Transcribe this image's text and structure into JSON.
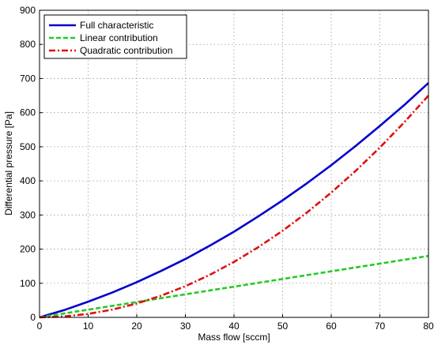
{
  "chart_data": {
    "type": "line",
    "title": "",
    "xlabel": "Mass flow [sccm]",
    "ylabel": "Differential pressure [Pa]",
    "xlim": [
      0,
      80
    ],
    "ylim": [
      0,
      900
    ],
    "xticks": [
      0,
      10,
      20,
      30,
      40,
      50,
      60,
      70,
      80
    ],
    "yticks": [
      0,
      100,
      200,
      300,
      400,
      500,
      600,
      700,
      800,
      900
    ],
    "grid": true,
    "legend_position": "top-left",
    "x": [
      0,
      5,
      10,
      15,
      20,
      25,
      30,
      35,
      40,
      45,
      50,
      55,
      60,
      65,
      70,
      75,
      80
    ],
    "series": [
      {
        "name": "Full characteristic",
        "color": "#0000cc",
        "style": "solid",
        "values": [
          0,
          21,
          46,
          73,
          103,
          136,
          171,
          210,
          251,
          296,
          343,
          393,
          446,
          502,
          561,
          622,
          687
        ]
      },
      {
        "name": "Linear contribution",
        "color": "#22cc22",
        "style": "dashed",
        "values": [
          0,
          11.3,
          22.5,
          33.8,
          45,
          56.3,
          67.5,
          78.8,
          90,
          101.3,
          112.5,
          123.8,
          135,
          146.3,
          157.5,
          168.8,
          180
        ]
      },
      {
        "name": "Quadratic contribution",
        "color": "#dd1111",
        "style": "dash-dot",
        "values": [
          0,
          2.5,
          10.2,
          22.8,
          40.6,
          63.5,
          91.4,
          124.4,
          162.5,
          205.7,
          253.9,
          307.2,
          365.6,
          429.1,
          497.7,
          571.3,
          650
        ]
      }
    ]
  }
}
